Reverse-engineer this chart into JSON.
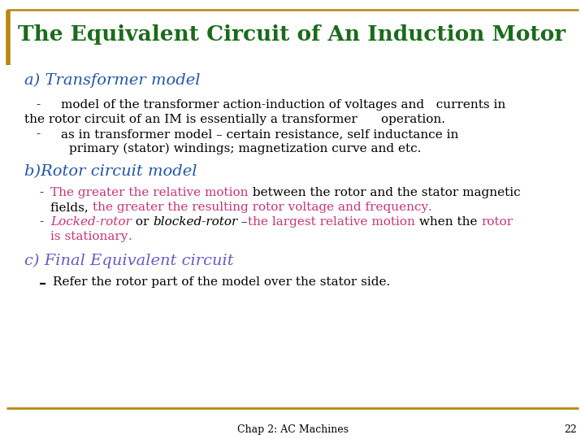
{
  "title": "The Equivalent Circuit of An Induction Motor",
  "title_color": "#1a6b1a",
  "title_border_color": "#B8860B",
  "bg_color": "#ffffff",
  "section_a_heading": "a) Transformer model",
  "section_a_color": "#2255aa",
  "section_b_heading": "b)Rotor circuit model",
  "section_b_color": "#2255aa",
  "section_c_heading": "c) Final Equivalent circuit",
  "section_c_color": "#6A5ACD",
  "footer_text": "Chap 2: AC Machines",
  "footer_page": "22",
  "footer_color": "#000000",
  "footer_line_color": "#B8860B",
  "left_bar_color": "#B8860B",
  "pink": "#CC3377",
  "black": "#000000"
}
